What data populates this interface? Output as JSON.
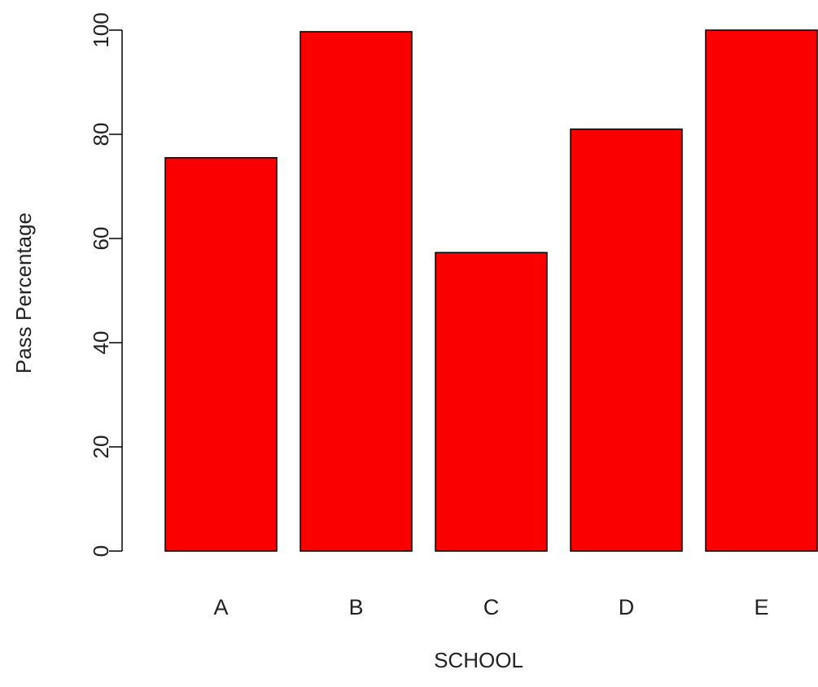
{
  "chart_data": {
    "type": "bar",
    "categories": [
      "A",
      "B",
      "C",
      "D",
      "E"
    ],
    "values": [
      75.5,
      99.7,
      57.3,
      81.0,
      100.0
    ],
    "title": "",
    "xlabel": "SCHOOL",
    "ylabel": "Pass Percentage",
    "ylim": [
      0,
      100
    ],
    "yticks": [
      0,
      20,
      40,
      60,
      80,
      100
    ],
    "grid": false,
    "legend": "none",
    "bar_color": "#fb0000",
    "bar_border_color": "#000000"
  }
}
